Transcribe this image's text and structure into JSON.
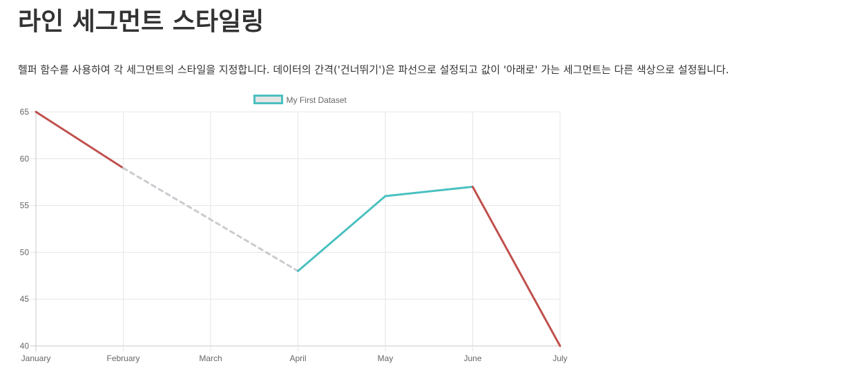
{
  "page": {
    "title": "라인 세그먼트 스타일링",
    "description": "헬퍼 함수를 사용하여 각 세그먼트의 스타일을 지정합니다. 데이터의 간격('건너뛰기')은 파선으로 설정되고 값이 '아래로' 가는 세그먼트는 다른 색상으로 설정됩니다."
  },
  "chart_data": {
    "type": "line",
    "categories": [
      "January",
      "February",
      "March",
      "April",
      "May",
      "June",
      "July"
    ],
    "series": [
      {
        "name": "My First Dataset",
        "values": [
          65,
          59,
          null,
          48,
          56,
          57,
          40
        ],
        "color": "#4bc0c0",
        "legend_fill": "#e5e5e5"
      }
    ],
    "segment_styles": {
      "down_color": "#c0504d",
      "skipped_color": "#c9cbcf",
      "skipped_dash": true
    },
    "ylim": [
      40,
      65
    ],
    "yticks": [
      40,
      45,
      50,
      55,
      60,
      65
    ],
    "grid": true,
    "legend": "top",
    "title": "",
    "xlabel": "",
    "ylabel": ""
  }
}
